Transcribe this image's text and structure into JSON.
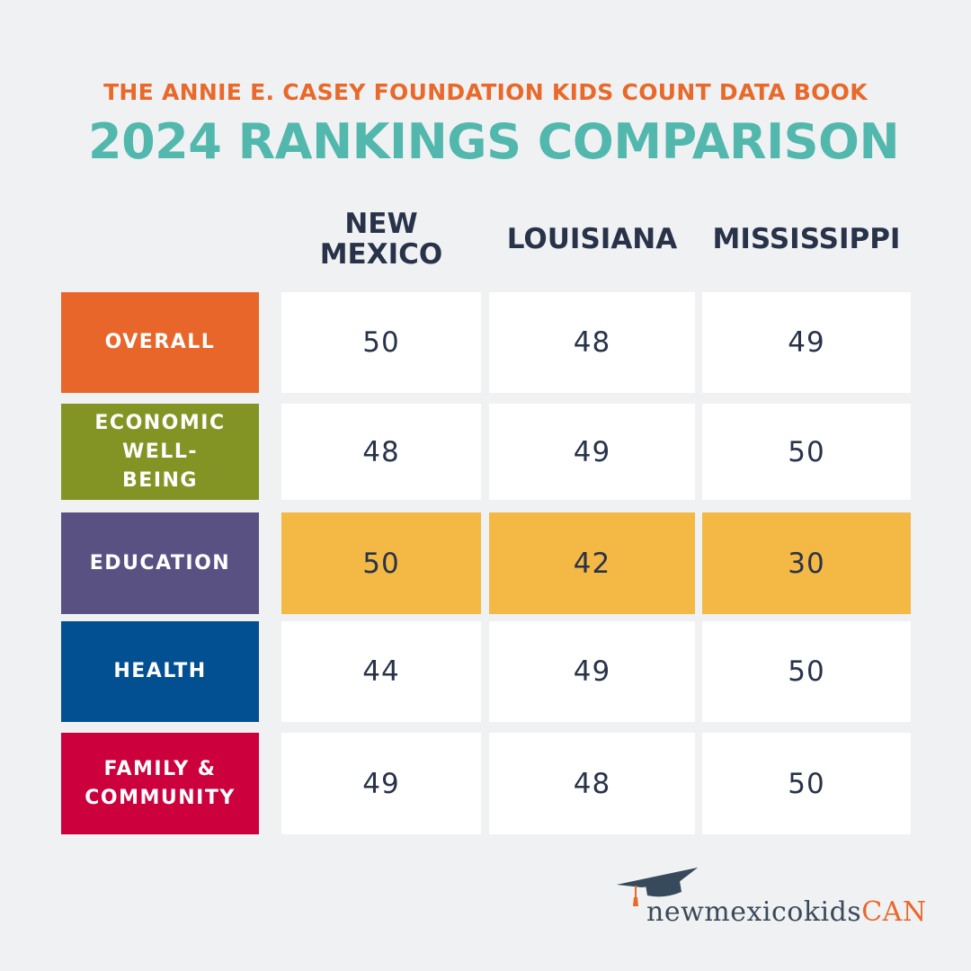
{
  "header": {
    "supertitle": "THE ANNIE E. CASEY FOUNDATION KIDS COUNT DATA BOOK",
    "title": "2024 RANKINGS COMPARISON"
  },
  "chart_data": {
    "type": "table",
    "title": "2024 RANKINGS COMPARISON",
    "columns": [
      "NEW MEXICO",
      "LOUISIANA",
      "MISSISSIPPI"
    ],
    "rows": [
      {
        "label": "OVERALL",
        "color": "#e8662a",
        "values": [
          "50",
          "48",
          "49"
        ],
        "highlight": false
      },
      {
        "label": "ECONOMIC WELL-BEING",
        "color": "#849424",
        "values": [
          "48",
          "49",
          "50"
        ],
        "highlight": false
      },
      {
        "label": "EDUCATION",
        "color": "#5a5183",
        "values": [
          "50",
          "42",
          "30"
        ],
        "highlight": true
      },
      {
        "label": "HEALTH",
        "color": "#025092",
        "values": [
          "44",
          "49",
          "50"
        ],
        "highlight": false
      },
      {
        "label": "FAMILY & COMMUNITY",
        "color": "#cc003d",
        "values": [
          "49",
          "48",
          "50"
        ],
        "highlight": false
      }
    ],
    "highlight_color": "#f4b844"
  },
  "logo": {
    "text_main": "newmexicokids",
    "text_accent": "CAN"
  }
}
